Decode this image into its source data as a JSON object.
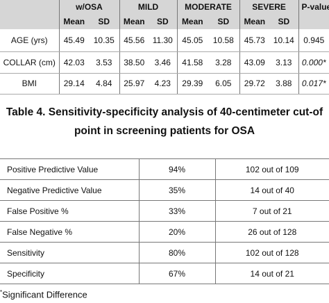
{
  "table1": {
    "groups": [
      "w/OSA",
      "MILD",
      "MODERATE",
      "SEVERE"
    ],
    "pvalue_header": "P-value",
    "subheaders": [
      "Mean",
      "SD"
    ],
    "rows": [
      {
        "label": "AGE (yrs)",
        "values": [
          "45.49",
          "10.35",
          "45.56",
          "11.30",
          "45.05",
          "10.58",
          "45.73",
          "10.14"
        ],
        "p": "0.945"
      },
      {
        "label": "COLLAR (cm)",
        "values": [
          "42.03",
          "3.53",
          "38.50",
          "3.46",
          "41.58",
          "3.28",
          "43.09",
          "3.13"
        ],
        "p": "0.000*"
      },
      {
        "label": "BMI",
        "values": [
          "29.14",
          "4.84",
          "25.97",
          "4.23",
          "29.39",
          "6.05",
          "29.72",
          "3.88"
        ],
        "p": "0.017*"
      }
    ]
  },
  "title": {
    "line1": "Table 4. Sensitivity-specificity analysis of 40-centimeter cut-of",
    "line2": "point in screening patients for OSA"
  },
  "table2": {
    "rows": [
      [
        "Positive Predictive Value",
        "94%",
        "102 out of 109"
      ],
      [
        "Negative Predictive Value",
        "35%",
        "14 out of 40"
      ],
      [
        "False Positive %",
        "33%",
        "7 out of 21"
      ],
      [
        "False Negative %",
        "20%",
        "26 out of 128"
      ],
      [
        "Sensitivity",
        "80%",
        "102 out of 128"
      ],
      [
        "Specificity",
        "67%",
        "14 out of 21"
      ]
    ]
  },
  "footnote": {
    "mark": "*",
    "text": "Significant Difference"
  }
}
